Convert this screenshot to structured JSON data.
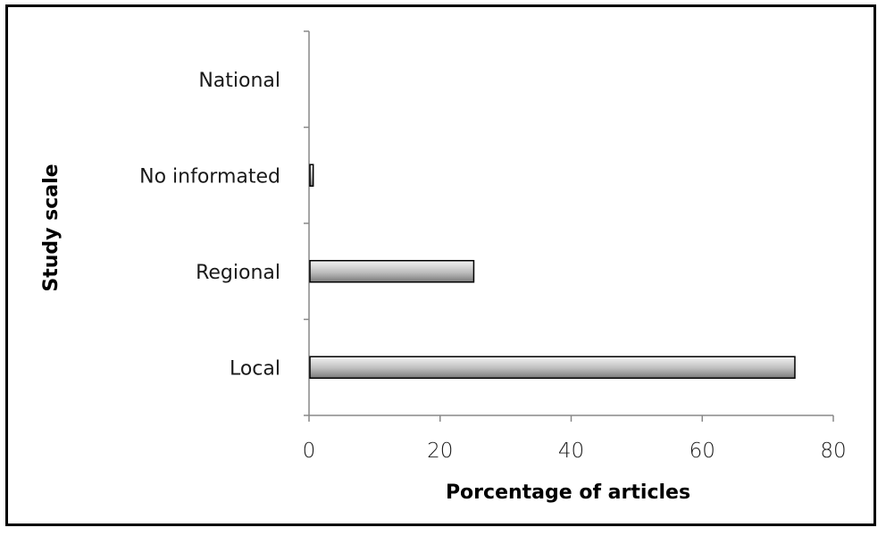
{
  "chart_data": {
    "type": "bar",
    "orientation": "horizontal",
    "categories": [
      "Local",
      "Regional",
      "No informated",
      "National"
    ],
    "values": [
      74,
      25,
      0.5,
      0
    ],
    "xlabel": "Porcentage of articles",
    "ylabel": "Study scale",
    "xlim": [
      0,
      80
    ],
    "xticks": [
      "0",
      "20",
      "40",
      "60",
      "80"
    ],
    "grid": false,
    "legend": "none",
    "bar_color": "#cfcfcf"
  }
}
